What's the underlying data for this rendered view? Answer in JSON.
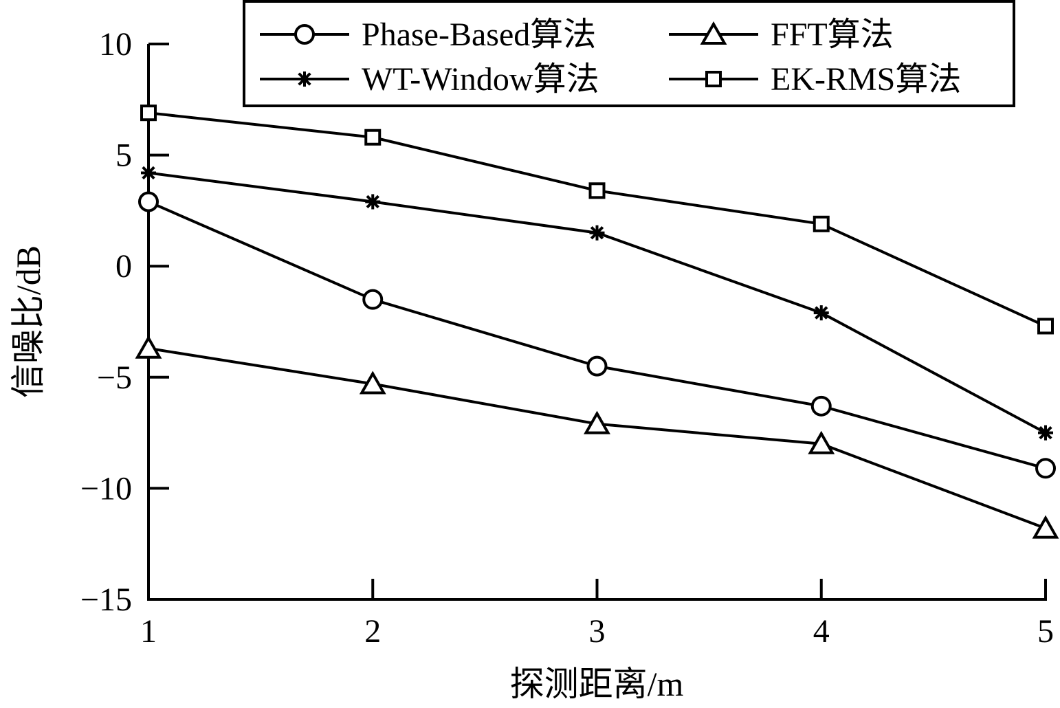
{
  "chart_data": {
    "type": "line",
    "xlabel": "探测距离/m",
    "ylabel": "信噪比/dB",
    "x": [
      1,
      2,
      3,
      4,
      5
    ],
    "xlim": [
      1,
      5
    ],
    "ylim": [
      -15,
      10
    ],
    "xticks": [
      "1",
      "2",
      "3",
      "4",
      "5"
    ],
    "yticks": [
      "−15",
      "−10",
      "−5",
      "0",
      "5",
      "10"
    ],
    "ytick_values": [
      -15,
      -10,
      -5,
      0,
      5,
      10
    ],
    "grid": false,
    "legend_position": "top-right",
    "line_color": "#000000",
    "series": [
      {
        "name": "Phase-Based算法",
        "marker": "circle",
        "values": [
          2.9,
          -1.5,
          -4.5,
          -6.3,
          -9.1
        ]
      },
      {
        "name": "FFT算法",
        "marker": "triangle",
        "values": [
          -3.7,
          -5.3,
          -7.1,
          -8.0,
          -11.8
        ]
      },
      {
        "name": "WT-Window算法",
        "marker": "asterisk",
        "values": [
          4.2,
          2.9,
          1.5,
          -2.1,
          -7.5
        ]
      },
      {
        "name": "EK-RMS算法",
        "marker": "square",
        "values": [
          6.9,
          5.8,
          3.4,
          1.9,
          -2.7
        ]
      }
    ]
  }
}
